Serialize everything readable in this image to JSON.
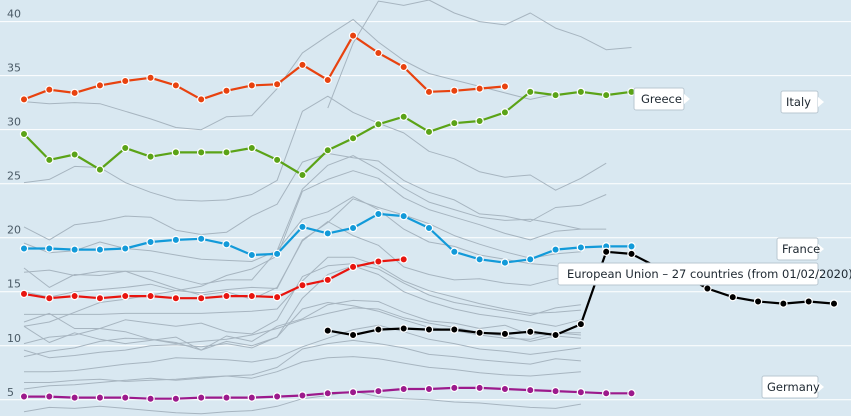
{
  "chart_data": {
    "type": "line",
    "title": "",
    "xlabel": "",
    "ylabel": "",
    "ylim": [
      3.5,
      42
    ],
    "yticks": [
      5,
      10,
      15,
      20,
      25,
      30,
      35,
      40
    ],
    "ytick_labels": [
      "5",
      "10",
      "15",
      "20",
      "25",
      "30",
      "35",
      "40"
    ],
    "grid": true,
    "x_count": 33,
    "colors": {
      "background": "#d9e8f1",
      "grid": "#ffffff",
      "background_lines": "#a7b5c0",
      "Greece": "#e8420f",
      "Italy": "#5ba317",
      "France": "#129ad9",
      "European Union – 27 countries (from 01/02/2020)": "#e8150f",
      "Germany": "#9c1a8c",
      "unlabeled_highlight": "#000000"
    },
    "series": [
      {
        "name": "Greece",
        "values": [
          32.8,
          33.7,
          33.4,
          34.1,
          34.5,
          34.8,
          34.1,
          32.8,
          33.6,
          34.1,
          34.2,
          36.0,
          34.6,
          38.7,
          37.1,
          35.8,
          33.5,
          33.6,
          33.8,
          34.0
        ]
      },
      {
        "name": "Italy",
        "values": [
          29.6,
          27.2,
          27.7,
          26.3,
          28.3,
          27.5,
          27.9,
          27.9,
          27.9,
          28.3,
          27.2,
          25.8,
          28.1,
          29.2,
          30.5,
          31.2,
          29.8,
          30.6,
          30.8,
          31.6,
          33.5,
          33.2,
          33.5,
          33.2,
          33.5
        ]
      },
      {
        "name": "France",
        "values": [
          19.0,
          19.0,
          18.9,
          18.9,
          19.0,
          19.6,
          19.8,
          19.9,
          19.4,
          18.4,
          18.5,
          21.0,
          20.4,
          20.9,
          22.2,
          22.0,
          20.9,
          18.7,
          18.0,
          17.7,
          18.0,
          18.9,
          19.1,
          19.2,
          19.2
        ]
      },
      {
        "name": "European Union – 27 countries (from 01/02/2020)",
        "values": [
          14.8,
          14.4,
          14.6,
          14.4,
          14.6,
          14.6,
          14.4,
          14.4,
          14.6,
          14.6,
          14.5,
          15.6,
          16.1,
          17.3,
          17.8,
          18.0,
          null,
          null,
          null,
          null,
          null,
          null,
          null,
          null,
          16.6
        ]
      },
      {
        "name": "Germany",
        "values": [
          5.3,
          5.3,
          5.2,
          5.2,
          5.2,
          5.1,
          5.1,
          5.2,
          5.2,
          5.2,
          5.3,
          5.4,
          5.6,
          5.7,
          5.8,
          6.0,
          6.0,
          6.1,
          6.1,
          6.0,
          5.9,
          5.8,
          5.7,
          5.6,
          5.6
        ]
      },
      {
        "name": "",
        "values": [
          null,
          null,
          null,
          null,
          null,
          null,
          null,
          null,
          null,
          null,
          null,
          null,
          11.4,
          11.0,
          11.5,
          11.6,
          11.5,
          11.5,
          11.2,
          11.1,
          11.3,
          11.0,
          12.0,
          18.7,
          18.5,
          17.3,
          16.6,
          15.3,
          14.5,
          14.1,
          13.9,
          14.1,
          13.9
        ]
      },
      {
        "name": "",
        "values": [
          null,
          null,
          null,
          null,
          null,
          null,
          null,
          null,
          null,
          null,
          null,
          null,
          32.0,
          38.0,
          41.9,
          41.5,
          42.0,
          40.8,
          40.0,
          39.7,
          40.8,
          39.4,
          38.6,
          37.4,
          37.6
        ]
      },
      {
        "name": "",
        "values": [
          32.6,
          32.4,
          32.5,
          32.4,
          31.7,
          31.0,
          30.2,
          30.0,
          31.2,
          31.3,
          33.8,
          37.1,
          38.7,
          40.2,
          38.1,
          36.4,
          35.2,
          34.6,
          34.0,
          33.4,
          32.8,
          33.3
        ]
      },
      {
        "name": "",
        "values": [
          25.1,
          25.4,
          26.6,
          26.5,
          25.1,
          24.2,
          23.5,
          23.4,
          23.5,
          24.0,
          25.3,
          31.7,
          33.1,
          31.6,
          30.6,
          29.7,
          28.0,
          27.3,
          26.1,
          25.6,
          25.8,
          24.4,
          25.5,
          26.9
        ]
      },
      {
        "name": "",
        "values": [
          21.0,
          19.8,
          21.2,
          21.5,
          22.0,
          21.9,
          20.7,
          20.3,
          20.5,
          22.0,
          23.1,
          27.0,
          27.8,
          27.4,
          27.1,
          25.3,
          24.2,
          23.5,
          22.2,
          22.0,
          21.5,
          22.8,
          23.0,
          24.0
        ]
      },
      {
        "name": "",
        "values": [
          16.8,
          17.0,
          16.5,
          16.9,
          16.9,
          16.9,
          16.3,
          15.7,
          16.1,
          16.1,
          18.8,
          24.5,
          26.7,
          27.6,
          26.3,
          24.6,
          23.3,
          22.6,
          21.9,
          21.6,
          21.7,
          21.3,
          20.8,
          20.8
        ]
      },
      {
        "name": "",
        "values": [
          11.8,
          12.2,
          13.1,
          14.0,
          14.3,
          14.7,
          15.1,
          15.5,
          16.5,
          17.1,
          18.3,
          24.3,
          25.4,
          26.2,
          25.5,
          23.7,
          22.6,
          21.9,
          21.2,
          20.4,
          19.8,
          20.6,
          20.8
        ]
      },
      {
        "name": "",
        "values": [
          19.5,
          18.6,
          18.8,
          19.6,
          19.0,
          18.8,
          18.4,
          18.0,
          17.9,
          17.8,
          18.8,
          21.7,
          22.4,
          23.8,
          22.6,
          20.8,
          19.6,
          19.2,
          18.4,
          18.0,
          17.6,
          17.4,
          17.0,
          17.0
        ]
      },
      {
        "name": "",
        "values": [
          15.0,
          14.5,
          15.0,
          15.2,
          15.4,
          15.7,
          15.1,
          14.9,
          15.2,
          15.4,
          15.3,
          19.8,
          21.4,
          23.6,
          22.8,
          22.1,
          21.3,
          20.2,
          19.4,
          18.7,
          18.1,
          18.5,
          18.7
        ]
      },
      {
        "name": "",
        "values": [
          17.2,
          15.4,
          16.6,
          16.5,
          16.9,
          16.1,
          15.3,
          14.7,
          15.0,
          14.3,
          15.4,
          19.7,
          21.5,
          20.2,
          19.3,
          17.3,
          16.6,
          16.1,
          16.2,
          15.8,
          15.6,
          16.2,
          16.5
        ]
      },
      {
        "name": "",
        "values": [
          12.9,
          12.9,
          12.9,
          12.9,
          13.0,
          13.0,
          13.0,
          13.0,
          13.1,
          13.2,
          13.4,
          16.0,
          18.2,
          18.2,
          17.4,
          16.0,
          15.1,
          14.5,
          13.9,
          13.4,
          13.0,
          13.1,
          13.3
        ]
      },
      {
        "name": "",
        "values": [
          10.2,
          10.8,
          11.0,
          11.6,
          12.4,
          12.1,
          11.8,
          12.1,
          11.3,
          11.1,
          12.4,
          16.4,
          17.4,
          17.6,
          17.1,
          15.8,
          14.7,
          14.0,
          13.6,
          13.2,
          12.8,
          13.5,
          13.8
        ]
      },
      {
        "name": "",
        "values": [
          11.8,
          10.3,
          11.2,
          10.6,
          10.2,
          10.5,
          10.8,
          9.6,
          10.4,
          10.0,
          10.8,
          14.4,
          16.6,
          17.4,
          16.6,
          15.0,
          14.1,
          13.4,
          12.9,
          12.6,
          12.2,
          11.8,
          12.4
        ]
      },
      {
        "name": "",
        "values": [
          12.2,
          13.0,
          11.6,
          11.6,
          11.3,
          10.6,
          10.3,
          9.6,
          10.9,
          10.4,
          11.8,
          12.5,
          13.8,
          14.2,
          14.1,
          13.1,
          12.3,
          12.1,
          11.6,
          11.9,
          11.0,
          11.2,
          11.2
        ]
      },
      {
        "name": "",
        "values": [
          9.0,
          9.5,
          9.8,
          10.4,
          10.7,
          10.6,
          10.2,
          10.4,
          10.6,
          11.0,
          11.6,
          12.4,
          13.0,
          13.5,
          13.4,
          12.6,
          12.1,
          11.7,
          11.2,
          10.9,
          10.4,
          10.9,
          10.7
        ]
      },
      {
        "name": "",
        "values": [
          9.6,
          8.9,
          9.1,
          9.4,
          9.6,
          10.0,
          10.1,
          9.9,
          10.2,
          9.8,
          10.8,
          13.4,
          14.0,
          13.7,
          13.2,
          12.4,
          11.7,
          11.4,
          11.0,
          10.7,
          10.6,
          11.2,
          11.0
        ]
      },
      {
        "name": "",
        "values": [
          7.6,
          7.6,
          7.7,
          8.0,
          8.3,
          8.5,
          8.9,
          8.8,
          8.7,
          8.5,
          8.9,
          9.9,
          10.7,
          11.5,
          11.9,
          11.3,
          10.6,
          10.2,
          9.7,
          9.5,
          9.2,
          9.5,
          9.8
        ]
      },
      {
        "name": "",
        "values": [
          6.6,
          6.6,
          6.8,
          6.9,
          6.7,
          6.8,
          6.9,
          7.1,
          7.2,
          7.3,
          8.0,
          9.7,
          10.2,
          10.5,
          10.2,
          9.8,
          9.2,
          9.0,
          8.7,
          8.5,
          8.3,
          8.8,
          8.6
        ]
      },
      {
        "name": "",
        "values": [
          6.0,
          6.3,
          6.4,
          6.6,
          6.8,
          7.0,
          6.8,
          7.0,
          7.2,
          7.0,
          7.6,
          8.5,
          8.9,
          9.0,
          8.8,
          8.4,
          8.0,
          7.8,
          7.5,
          7.3,
          7.2,
          7.4,
          7.6
        ]
      },
      {
        "name": "",
        "values": [
          3.9,
          4.3,
          4.2,
          4.4,
          4.2,
          4.0,
          3.8,
          3.7,
          3.9,
          4.0,
          4.4,
          5.1,
          5.4,
          5.8,
          5.3,
          5.1,
          5.0,
          4.8,
          4.7,
          4.5,
          4.3,
          4.2,
          4.6
        ]
      }
    ]
  },
  "callouts": [
    {
      "label": "Greece"
    },
    {
      "label": "Italy"
    },
    {
      "label": "France"
    },
    {
      "label": "European Union – 27 countries (from 01/02/2020)"
    },
    {
      "label": "Germany"
    }
  ]
}
